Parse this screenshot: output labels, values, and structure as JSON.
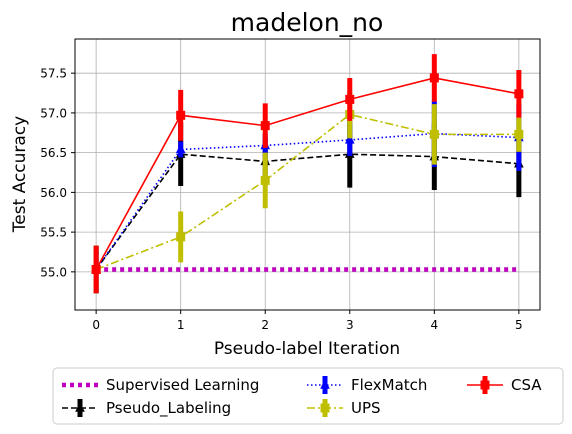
{
  "chart_data": {
    "type": "line",
    "title": "madelon_no",
    "xlabel": "Pseudo-label Iteration",
    "ylabel": "Test Accuracy",
    "x": [
      0,
      1,
      2,
      3,
      4,
      5
    ],
    "xlim": [
      -0.25,
      5.25
    ],
    "ylim": [
      54.52,
      57.93
    ],
    "xticks": [
      "0",
      "1",
      "2",
      "3",
      "4",
      "5"
    ],
    "yticks": [
      "55.0",
      "55.5",
      "56.0",
      "56.5",
      "57.0",
      "57.5"
    ],
    "grid": true,
    "legend_position": "bottom",
    "series": [
      {
        "name": "Supervised Learning",
        "color": "#bf00bf",
        "style": "dotted",
        "marker": "none",
        "values": [
          55.03,
          55.03,
          55.03,
          55.03,
          55.03,
          55.03
        ],
        "errors": [
          0,
          0,
          0,
          0,
          0,
          0
        ]
      },
      {
        "name": "Pseudo_Labeling",
        "color": "#000000",
        "style": "dashed",
        "marker": "triangle",
        "values": [
          55.03,
          56.48,
          56.39,
          56.48,
          56.45,
          56.36
        ],
        "errors": [
          0.3,
          0.4,
          0.3,
          0.42,
          0.42,
          0.42
        ]
      },
      {
        "name": "FlexMatch",
        "color": "#0000ff",
        "style": "dotted",
        "marker": "triangle",
        "values": [
          55.03,
          56.54,
          56.59,
          56.66,
          56.74,
          56.69
        ],
        "errors": [
          0.3,
          0.1,
          0.15,
          0.2,
          0.42,
          0.42
        ]
      },
      {
        "name": "UPS",
        "color": "#bfbf00",
        "style": "dashdot",
        "marker": "square",
        "values": [
          55.03,
          55.44,
          56.15,
          56.98,
          56.73,
          56.73
        ],
        "errors": [
          0.3,
          0.32,
          0.35,
          0.3,
          0.38,
          0.22
        ]
      },
      {
        "name": "CSA",
        "color": "#ff0000",
        "style": "solid",
        "marker": "square",
        "values": [
          55.03,
          56.97,
          56.84,
          57.17,
          57.44,
          57.24
        ],
        "errors": [
          0.3,
          0.32,
          0.28,
          0.27,
          0.3,
          0.3
        ]
      }
    ]
  }
}
